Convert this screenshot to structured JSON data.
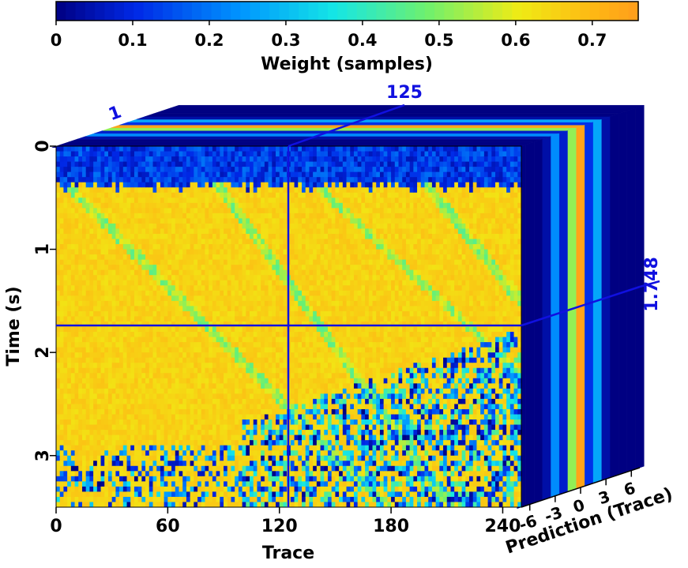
{
  "chart_data": {
    "type": "heatmap",
    "view": "3-D cube slices (front face: time vs trace; top face: trace vs prediction; side face: prediction vs time)",
    "colorbar": {
      "label": "Weight (samples)",
      "ticks": [
        "0",
        "0.1",
        "0.2",
        "0.3",
        "0.4",
        "0.5",
        "0.6",
        "0.7"
      ],
      "range": [
        0,
        0.76
      ],
      "colormap": "jet"
    },
    "x_axis": {
      "label": "Trace",
      "ticks": [
        "0",
        "60",
        "120",
        "180",
        "240"
      ],
      "range": [
        0,
        250
      ]
    },
    "y_axis": {
      "label": "Time (s)",
      "ticks": [
        "0",
        "1",
        "2",
        "3"
      ],
      "range": [
        0,
        3.5
      ],
      "inverted": true
    },
    "depth_axis": {
      "label": "Prediction (Trace)",
      "ticks": [
        "-6",
        "-3",
        "0",
        "3",
        "6"
      ],
      "range": [
        -7,
        7
      ]
    },
    "slice_markers": {
      "trace": "125",
      "time": "1.748",
      "prediction": "1"
    },
    "side_panel_profile": {
      "prediction": [
        -7,
        -6,
        -5,
        -4,
        -3,
        -2,
        -1,
        0,
        1,
        2,
        3,
        4,
        5,
        6,
        7
      ],
      "weight": [
        0.0,
        0.0,
        0.0,
        0.05,
        0.3,
        0.1,
        0.68,
        0.98,
        0.15,
        0.35,
        0.05,
        0.0,
        0.0,
        0.0,
        0.0
      ]
    },
    "description_regions": {
      "shallow_zone_weight": 0.05,
      "background_weight": 0.68,
      "dipping_event_weight": 0.45,
      "deep_noisy_weight": 0.3
    }
  }
}
